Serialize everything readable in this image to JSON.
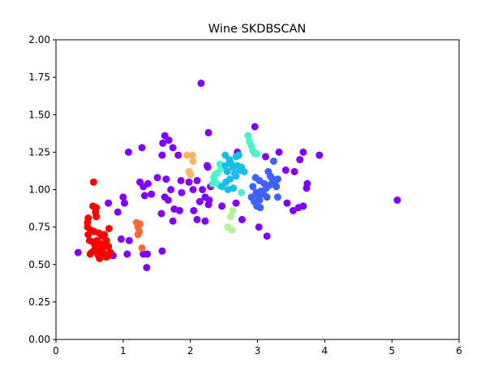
{
  "chart_data": {
    "type": "scatter",
    "title": "Wine SKDBSCAN",
    "xlabel": "",
    "ylabel": "",
    "xlim": [
      0,
      6
    ],
    "ylim": [
      0,
      2
    ],
    "xticks": [
      "0",
      "1",
      "2",
      "3",
      "4",
      "5",
      "6"
    ],
    "yticks": [
      "0.00",
      "0.25",
      "0.50",
      "0.75",
      "1.00",
      "1.25",
      "1.50",
      "1.75",
      "2.00"
    ],
    "grid": false,
    "legend": "none",
    "series": [
      {
        "color": "#8000ff",
        "points": [
          [
            2.16,
            1.71
          ],
          [
            2.96,
            1.42
          ],
          [
            1.62,
            1.36
          ],
          [
            1.68,
            1.33
          ],
          [
            1.59,
            1.31
          ],
          [
            1.28,
            1.28
          ],
          [
            1.74,
            1.28
          ],
          [
            2.27,
            1.38
          ],
          [
            1.08,
            1.25
          ],
          [
            1.58,
            1.23
          ],
          [
            1.82,
            1.23
          ],
          [
            2.7,
            1.25
          ],
          [
            3.12,
            1.22
          ],
          [
            3.32,
            1.25
          ],
          [
            3.68,
            1.25
          ],
          [
            3.92,
            1.23
          ],
          [
            3.63,
            1.2
          ],
          [
            2.25,
            1.16
          ],
          [
            2.26,
            1.15
          ],
          [
            1.51,
            1.08
          ],
          [
            1.64,
            1.07
          ],
          [
            1.86,
            1.06
          ],
          [
            1.25,
            1.05
          ],
          [
            1.3,
            1.02
          ],
          [
            1.37,
            1.04
          ],
          [
            1.71,
            1.0
          ],
          [
            1.98,
            1.05
          ],
          [
            2.1,
            1.06
          ],
          [
            2.04,
            1.0
          ],
          [
            2.18,
            1.0
          ],
          [
            2.3,
            1.02
          ],
          [
            1.87,
            0.98
          ],
          [
            1.42,
            0.97
          ],
          [
            1.32,
            0.96
          ],
          [
            1.62,
            0.95
          ],
          [
            1.67,
            0.93
          ],
          [
            1.0,
            0.95
          ],
          [
            0.78,
            0.91
          ],
          [
            1.02,
            0.91
          ],
          [
            2.14,
            0.92
          ],
          [
            2.22,
            0.95
          ],
          [
            2.28,
            0.93
          ],
          [
            2.27,
            0.9
          ],
          [
            2.47,
            0.89
          ],
          [
            2.68,
            0.91
          ],
          [
            3.42,
            1.13
          ],
          [
            3.55,
            1.12
          ],
          [
            3.74,
            1.04
          ],
          [
            3.73,
            1.01
          ],
          [
            3.44,
            0.91
          ],
          [
            3.53,
            0.86
          ],
          [
            3.61,
            0.88
          ],
          [
            3.68,
            0.89
          ],
          [
            1.57,
            0.84
          ],
          [
            1.76,
            0.87
          ],
          [
            1.84,
            0.86
          ],
          [
            1.74,
            0.79
          ],
          [
            2.1,
            0.8
          ],
          [
            2.22,
            0.79
          ],
          [
            2.77,
            0.8
          ],
          [
            3.02,
            0.75
          ],
          [
            3.14,
            0.69
          ],
          [
            0.92,
            0.85
          ],
          [
            0.97,
            0.67
          ],
          [
            1.09,
            0.66
          ],
          [
            1.06,
            0.57
          ],
          [
            1.3,
            0.57
          ],
          [
            1.36,
            0.57
          ],
          [
            1.35,
            0.48
          ],
          [
            1.58,
            0.59
          ],
          [
            0.33,
            0.58
          ],
          [
            5.08,
            0.93
          ],
          [
            0.85,
            0.56
          ],
          [
            2.05,
            0.86
          ]
        ]
      },
      {
        "color": "#ff0000",
        "points": [
          [
            0.56,
            1.05
          ],
          [
            0.55,
            0.89
          ],
          [
            0.6,
            0.88
          ],
          [
            0.59,
            0.85
          ],
          [
            0.6,
            0.82
          ],
          [
            0.48,
            0.81
          ],
          [
            0.47,
            0.78
          ],
          [
            0.47,
            0.75
          ],
          [
            0.52,
            0.73
          ],
          [
            0.48,
            0.7
          ],
          [
            0.57,
            0.72
          ],
          [
            0.64,
            0.71
          ],
          [
            0.69,
            0.69
          ],
          [
            0.72,
            0.7
          ],
          [
            0.5,
            0.66
          ],
          [
            0.55,
            0.65
          ],
          [
            0.61,
            0.66
          ],
          [
            0.75,
            0.66
          ],
          [
            0.58,
            0.63
          ],
          [
            0.64,
            0.63
          ],
          [
            0.66,
            0.64
          ],
          [
            0.72,
            0.63
          ],
          [
            0.79,
            0.74
          ],
          [
            0.6,
            0.61
          ],
          [
            0.7,
            0.61
          ],
          [
            0.78,
            0.62
          ],
          [
            0.53,
            0.58
          ],
          [
            0.56,
            0.59
          ],
          [
            0.62,
            0.6
          ],
          [
            0.67,
            0.58
          ],
          [
            0.73,
            0.57
          ],
          [
            0.81,
            0.58
          ],
          [
            0.51,
            0.57
          ],
          [
            0.63,
            0.56
          ],
          [
            0.65,
            0.54
          ],
          [
            0.75,
            0.55
          ],
          [
            0.79,
            0.56
          ]
        ]
      },
      {
        "color": "#ff6a38",
        "points": [
          [
            1.2,
            0.78
          ],
          [
            1.25,
            0.77
          ],
          [
            1.22,
            0.75
          ],
          [
            1.24,
            0.72
          ],
          [
            1.22,
            0.7
          ],
          [
            1.28,
            0.61
          ]
        ]
      },
      {
        "color": "#ffb462",
        "points": [
          [
            1.95,
            1.23
          ],
          [
            2.03,
            1.23
          ],
          [
            2.04,
            1.19
          ],
          [
            1.98,
            1.12
          ],
          [
            2.0,
            1.1
          ]
        ]
      },
      {
        "color": "#b2f396",
        "points": [
          [
            2.63,
            0.86
          ],
          [
            2.6,
            0.82
          ],
          [
            2.56,
            0.75
          ],
          [
            2.62,
            0.73
          ]
        ]
      },
      {
        "color": "#4cf2ce",
        "points": [
          [
            2.86,
            1.36
          ],
          [
            2.88,
            1.32
          ],
          [
            2.91,
            1.29
          ],
          [
            2.93,
            1.26
          ],
          [
            2.96,
            1.24
          ],
          [
            2.99,
            1.24
          ],
          [
            2.44,
            1.17
          ],
          [
            2.46,
            1.14
          ],
          [
            2.37,
            1.1
          ],
          [
            2.4,
            1.11
          ],
          [
            2.35,
            1.08
          ],
          [
            2.37,
            1.05
          ],
          [
            2.33,
            1.04
          ],
          [
            2.43,
            1.03
          ],
          [
            2.76,
            0.98
          ]
        ]
      },
      {
        "color": "#18bde8",
        "points": [
          [
            2.52,
            1.23
          ],
          [
            2.58,
            1.2
          ],
          [
            2.68,
            1.22
          ],
          [
            2.72,
            1.23
          ],
          [
            2.52,
            1.16
          ],
          [
            2.6,
            1.18
          ],
          [
            2.63,
            1.15
          ],
          [
            2.7,
            1.16
          ],
          [
            2.76,
            1.15
          ],
          [
            2.55,
            1.12
          ],
          [
            2.66,
            1.11
          ],
          [
            2.74,
            1.13
          ],
          [
            2.8,
            1.12
          ],
          [
            2.53,
            1.05
          ],
          [
            2.59,
            1.07
          ],
          [
            2.68,
            1.09
          ],
          [
            2.47,
            1.02
          ],
          [
            2.56,
            1.0
          ],
          [
            2.64,
            1.01
          ]
        ]
      },
      {
        "color": "#4062fa",
        "points": [
          [
            3.24,
            1.19
          ],
          [
            2.97,
            1.08
          ],
          [
            3.03,
            1.06
          ],
          [
            3.1,
            1.04
          ],
          [
            3.16,
            1.12
          ],
          [
            3.19,
            1.09
          ],
          [
            3.22,
            1.07
          ],
          [
            3.26,
            1.05
          ],
          [
            3.3,
            1.07
          ],
          [
            3.13,
            1.01
          ],
          [
            3.18,
            1.03
          ],
          [
            3.28,
            1.02
          ],
          [
            2.93,
            1.02
          ],
          [
            2.98,
            0.98
          ],
          [
            3.05,
            0.99
          ],
          [
            3.01,
            0.96
          ],
          [
            3.09,
            0.97
          ],
          [
            3.14,
            0.95
          ],
          [
            2.91,
            0.95
          ],
          [
            2.95,
            0.92
          ],
          [
            3.03,
            0.93
          ],
          [
            2.99,
            0.89
          ],
          [
            3.04,
            0.88
          ],
          [
            3.3,
            0.95
          ]
        ]
      }
    ]
  }
}
